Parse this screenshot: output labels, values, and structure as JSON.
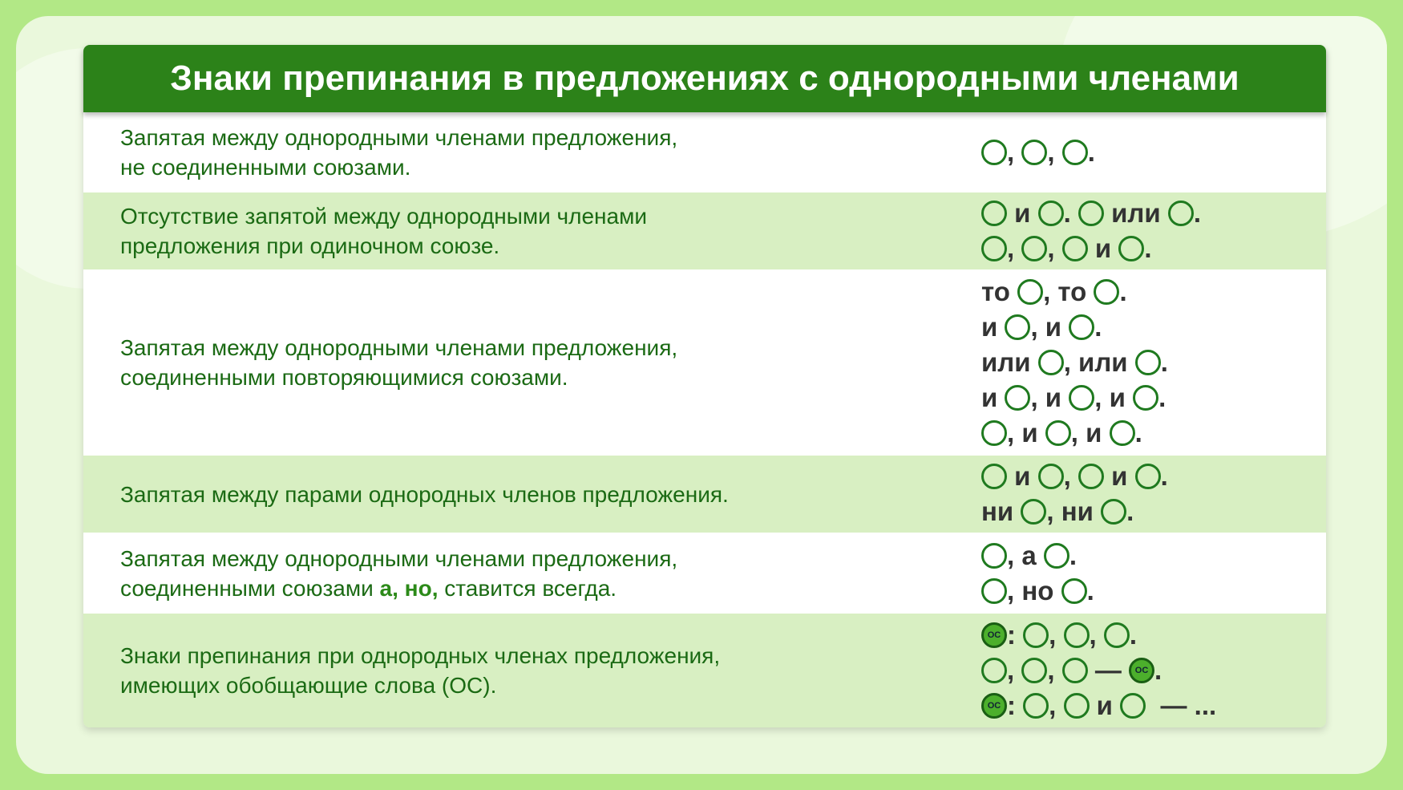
{
  "title": "Знаки препинания в предложениях с однородными членами",
  "colors": {
    "header": "#2c8219",
    "text": "#1b6a14",
    "row_alt": "#d8efc2",
    "background": "#b2e886"
  },
  "rows": [
    {
      "desc": [
        [
          "Запятая между однородными членами предложения,"
        ],
        [
          "не соединенными союзами."
        ]
      ],
      "lines": [
        [
          {
            "c": 1
          },
          ", ",
          {
            "c": 1
          },
          ", ",
          {
            "c": 1
          },
          "."
        ]
      ]
    },
    {
      "desc": [
        [
          "Отсутствие запятой между однородными членами"
        ],
        [
          "предложения при одиночном союзе."
        ]
      ],
      "lines": [
        [
          {
            "c": 1
          },
          " и ",
          {
            "c": 1
          },
          ". ",
          {
            "c": 1
          },
          " или ",
          {
            "c": 1
          },
          "."
        ],
        [
          {
            "c": 1
          },
          ", ",
          {
            "c": 1
          },
          ", ",
          {
            "c": 1
          },
          " и ",
          {
            "c": 1
          },
          "."
        ]
      ]
    },
    {
      "desc": [
        [
          "Запятая между однородными членами предложения,"
        ],
        [
          "соединенными повторяющимися союзами."
        ]
      ],
      "lines": [
        [
          "то ",
          {
            "c": 1
          },
          ", то ",
          {
            "c": 1
          },
          "."
        ],
        [
          "и ",
          {
            "c": 1
          },
          ", и ",
          {
            "c": 1
          },
          "."
        ],
        [
          "или ",
          {
            "c": 1
          },
          ", или ",
          {
            "c": 1
          },
          "."
        ],
        [
          "и ",
          {
            "c": 1
          },
          ", и ",
          {
            "c": 1
          },
          ", и ",
          {
            "c": 1
          },
          "."
        ],
        [
          {
            "c": 1
          },
          ", и ",
          {
            "c": 1
          },
          ", и ",
          {
            "c": 1
          },
          "."
        ]
      ]
    },
    {
      "desc": [
        [
          "Запятая между парами однородных членов предложения."
        ]
      ],
      "lines": [
        [
          {
            "c": 1
          },
          " и ",
          {
            "c": 1
          },
          ", ",
          {
            "c": 1
          },
          " и ",
          {
            "c": 1
          },
          "."
        ],
        [
          "ни ",
          {
            "c": 1
          },
          ", ни ",
          {
            "c": 1
          },
          "."
        ]
      ]
    },
    {
      "desc": [
        [
          "Запятая между однородными членами предложения,"
        ],
        [
          "соединенными союзами ",
          {
            "b": "а, но,"
          },
          " ставится всегда."
        ]
      ],
      "lines": [
        [
          {
            "c": 1
          },
          ", а ",
          {
            "c": 1
          },
          "."
        ],
        [
          {
            "c": 1
          },
          ", но ",
          {
            "c": 1
          },
          "."
        ]
      ]
    },
    {
      "desc": [
        [
          "Знаки препинания при однородных членах предложения,"
        ],
        [
          "имеющих обобщающие слова (ОС)."
        ]
      ],
      "lines": [
        [
          {
            "oc": "ОС"
          },
          ": ",
          {
            "c": 1
          },
          ", ",
          {
            "c": 1
          },
          ", ",
          {
            "c": 1
          },
          "."
        ],
        [
          {
            "c": 1
          },
          ", ",
          {
            "c": 1
          },
          ", ",
          {
            "c": 1
          },
          " — ",
          {
            "oc": "ОС"
          },
          "."
        ],
        [
          {
            "oc": "ОС"
          },
          ": ",
          {
            "c": 1
          },
          ", ",
          {
            "c": 1
          },
          " и ",
          {
            "c": 1
          },
          "  — ..."
        ]
      ]
    }
  ]
}
